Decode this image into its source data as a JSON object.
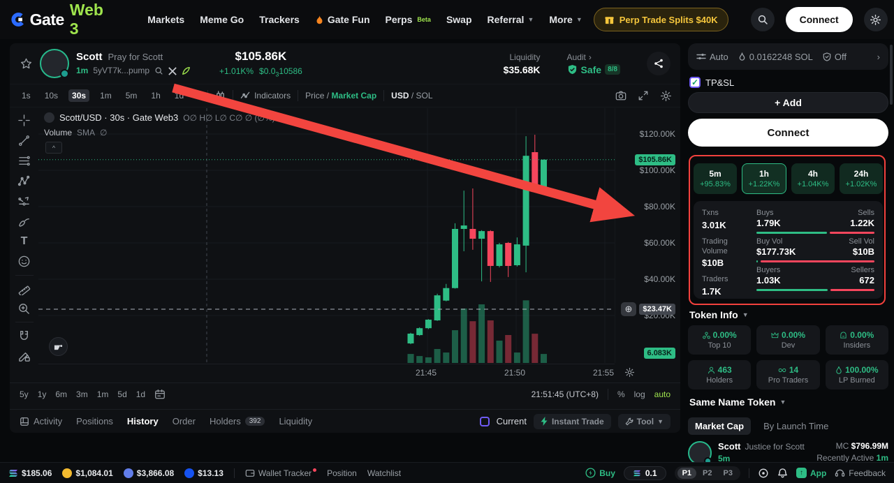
{
  "nav": {
    "brand_gate": "Gate",
    "brand_web3": "Web 3",
    "menu": {
      "markets": "Markets",
      "meme_go": "Meme Go",
      "trackers": "Trackers",
      "gate_fun": "Gate Fun",
      "perps": "Perps",
      "perps_badge": "Beta",
      "swap": "Swap",
      "referral": "Referral",
      "more": "More"
    },
    "promo_pill": "Perp Trade Splits $40K",
    "ticker": "Meme G",
    "connect_label": "Connect"
  },
  "token_header": {
    "name": "Scott",
    "subtitle": "Pray for Scott",
    "age": "1m",
    "address": "5yVT7k...pump",
    "price": "$105.86K",
    "change": "+1.01K%",
    "unit_price_prefix": "$0.0",
    "unit_price_sub": "3",
    "unit_price_digits": "10586",
    "liquidity_label": "Liquidity",
    "liquidity_value": "$35.68K",
    "audit_label": "Audit",
    "audit_status": "Safe",
    "audit_score": "8/8"
  },
  "chart_toolbar": {
    "intervals": [
      "1s",
      "10s",
      "30s",
      "1m",
      "5m",
      "1h",
      "1d"
    ],
    "indicators_label": "Indicators",
    "price_label": "Price",
    "slash": "/",
    "market_cap_label": "Market Cap",
    "usd_label": "USD",
    "sol_label": "SOL"
  },
  "chart": {
    "legend_title": "Scott/USD · 30s · Gate Web3",
    "legend_ohlc": "O∅  H∅  L∅  C∅  ∅ (∅%)",
    "volume_label": "Volume",
    "volume_sma": "SMA",
    "volume_value": "∅",
    "collapse_glyph": "^",
    "ranges": [
      "5y",
      "1y",
      "6m",
      "3m",
      "1m",
      "5d",
      "1d"
    ],
    "clock": "21:51:45 (UTC+8)",
    "percent": "%",
    "log": "log",
    "auto": "auto"
  },
  "chart_data": {
    "type": "candlestick+volume",
    "symbol": "Scott/USD",
    "interval": "30s",
    "venue": "Gate Web3",
    "x_axis_labels": [
      "21:45",
      "21:50",
      "21:55"
    ],
    "y_axis_ticks": [
      "$120.00K",
      "$100.00K",
      "$80.00K",
      "$60.00K",
      "$40.00K",
      "$20.00K"
    ],
    "y_tick_values_k": [
      120,
      100,
      80,
      60,
      40,
      20
    ],
    "last_price_label": "$105.86K",
    "last_price_k": 105.86,
    "crosshair_label": "$23.47K",
    "crosshair_k": 23.47,
    "volume_axis_label": "6.083K",
    "candles": [
      {
        "o": 4.6,
        "h": 10.5,
        "l": 4.2,
        "c": 10,
        "v": 5.6
      },
      {
        "o": 9.2,
        "h": 13.5,
        "l": 8.8,
        "c": 13,
        "v": 4.3
      },
      {
        "o": 13,
        "h": 18,
        "l": 12.5,
        "c": 17.7,
        "v": 3.5
      },
      {
        "o": 17.3,
        "h": 32,
        "l": 17,
        "c": 31.1,
        "v": 8.7
      },
      {
        "o": 28.2,
        "h": 37.4,
        "l": 27.8,
        "c": 35.1,
        "v": 6.5
      },
      {
        "o": 35.1,
        "h": 70.8,
        "l": 34.8,
        "c": 67.7,
        "v": 20.4
      },
      {
        "o": 67.7,
        "h": 88.8,
        "l": 55.4,
        "c": 69.6,
        "v": 33.9
      },
      {
        "o": 67.7,
        "h": 90,
        "l": 56.2,
        "c": 62.3,
        "v": 26
      },
      {
        "o": 62.3,
        "h": 67,
        "l": 38.8,
        "c": 66.5,
        "v": 36.5
      },
      {
        "o": 66.5,
        "h": 67,
        "l": 38.5,
        "c": 47.3,
        "v": 26.5
      },
      {
        "o": 47.3,
        "h": 60,
        "l": 46.5,
        "c": 59.2,
        "v": 13.9
      },
      {
        "o": 60,
        "h": 60.5,
        "l": 41.2,
        "c": 47.3,
        "v": 17.4
      },
      {
        "o": 47.7,
        "h": 63,
        "l": 47,
        "c": 59.2,
        "v": 6.5
      },
      {
        "o": 58.5,
        "h": 118.8,
        "l": 43.8,
        "c": 108,
        "v": 39
      },
      {
        "o": 110,
        "h": 119.6,
        "l": 90.5,
        "c": 91.2,
        "v": 18.2
      },
      {
        "o": 90,
        "h": 106,
        "l": 89.5,
        "c": 105.86,
        "v": 5.6
      }
    ]
  },
  "sidebar": {
    "route": {
      "auto": "Auto",
      "gas": "0.0162248 SOL",
      "mev": "Off"
    },
    "tpsl_label": "TP&SL",
    "add_label": "+ Add",
    "connect_label": "Connect",
    "perf": [
      {
        "label": "5m",
        "value": "+95.83%"
      },
      {
        "label": "1h",
        "value": "+1.22K%"
      },
      {
        "label": "4h",
        "value": "+1.04K%"
      },
      {
        "label": "24h",
        "value": "+1.02K%"
      }
    ],
    "stats": {
      "txns_label": "Txns",
      "txns": "3.01K",
      "buys_label": "Buys",
      "buys": "1.79K",
      "sells_label": "Sells",
      "sells": "1.22K",
      "buy_ratio": 0.595,
      "tv_label": "Trading Volume",
      "tv": "$10B",
      "buyvol_label": "Buy Vol",
      "buyvol": "$177.73K",
      "sellvol_label": "Sell Vol",
      "sellvol": "$10B",
      "buyvol_ratio": 0.012,
      "traders_label": "Traders",
      "traders": "1.7K",
      "buyers_label": "Buyers",
      "buyers": "1.03K",
      "sellers_label": "Sellers",
      "sellers": "672",
      "buyers_ratio": 0.605
    },
    "token_info_label": "Token Info",
    "token_info": [
      {
        "value": "0.00%",
        "label": "Top 10"
      },
      {
        "value": "0.00%",
        "label": "Dev"
      },
      {
        "value": "0.00%",
        "label": "Insiders"
      },
      {
        "value": "463",
        "label": "Holders"
      },
      {
        "value": "14",
        "label": "Pro Traders"
      },
      {
        "value": "100.00%",
        "label": "LP Burned"
      }
    ],
    "same_name_label": "Same Name Token",
    "sort_market_cap": "Market Cap",
    "sort_launch": "By Launch Time",
    "same_token": {
      "name": "Scott",
      "subtitle": "Justice for Scott",
      "age": "5m",
      "mc_label": "MC",
      "mc": "$796.99M",
      "recent_label": "Recently Active",
      "recent": "1m"
    }
  },
  "tabs": {
    "activity": "Activity",
    "positions": "Positions",
    "history": "History",
    "order": "Order",
    "holders": "Holders",
    "holders_count": "392",
    "liquidity": "Liquidity",
    "current": "Current",
    "instant": "Instant Trade",
    "tool": "Tool"
  },
  "statusbar": {
    "sol": "$185.06",
    "bnb": "$1,084.01",
    "eth": "$3,866.08",
    "alt": "$13.13",
    "wallet_tracker": "Wallet Tracker",
    "position": "Position",
    "watchlist": "Watchlist",
    "buy": "Buy",
    "amount": "0.1",
    "p1": "P1",
    "p2": "P2",
    "p3": "P3",
    "app": "App",
    "feedback": "Feedback"
  }
}
